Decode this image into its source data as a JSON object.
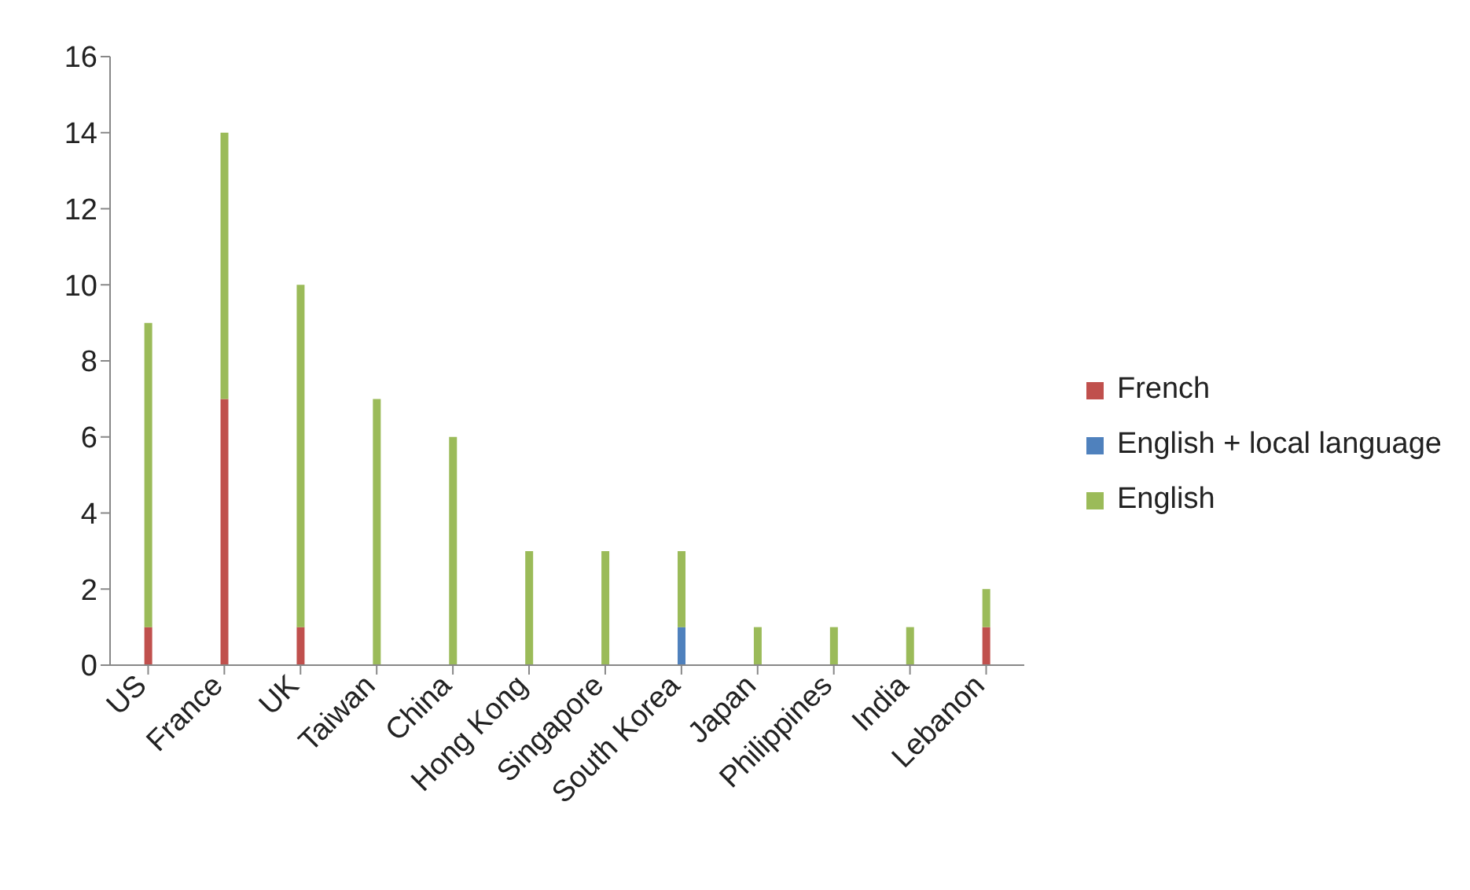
{
  "chart_data": {
    "type": "bar",
    "stacked": true,
    "categories": [
      "US",
      "France",
      "UK",
      "Taiwan",
      "China",
      "Hong Kong",
      "Singapore",
      "South Korea",
      "Japan",
      "Philippines",
      "India",
      "Lebanon"
    ],
    "series": [
      {
        "name": "French",
        "color": "#c0504d",
        "values": [
          1,
          7,
          1,
          null,
          null,
          null,
          null,
          null,
          null,
          null,
          null,
          1
        ]
      },
      {
        "name": "English + local language",
        "color": "#4f81bd",
        "values": [
          null,
          null,
          null,
          null,
          null,
          null,
          null,
          1,
          null,
          null,
          null,
          null
        ]
      },
      {
        "name": "English",
        "color": "#9bbb59",
        "values": [
          8,
          7,
          9,
          7,
          6,
          3,
          3,
          2,
          1,
          1,
          1,
          1
        ]
      }
    ],
    "ylim": [
      0,
      16
    ],
    "yticks": [
      0,
      2,
      4,
      6,
      8,
      10,
      12,
      14,
      16
    ],
    "grid": false,
    "legend": "right"
  }
}
